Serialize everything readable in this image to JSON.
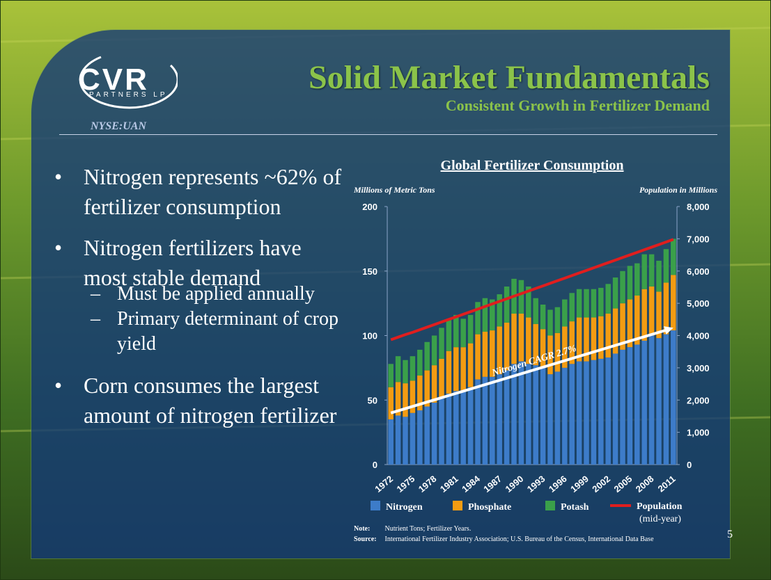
{
  "slide": {
    "title": "Solid Market Fundamentals",
    "subtitle": "Consistent Growth in Fertilizer Demand",
    "logo_main": "CVR",
    "logo_sub": "PARTNERS LP",
    "ticker": "NYSE:UAN",
    "page_number": "5"
  },
  "bullets": [
    {
      "text": "Nitrogen represents ~62% of fertilizer consumption"
    },
    {
      "text": "Nitrogen fertilizers have most stable demand",
      "sub": [
        "Must be applied annually",
        "Primary determinant of crop yield"
      ]
    },
    {
      "text": "Corn consumes the largest amount of nitrogen fertilizer"
    }
  ],
  "notes": {
    "note_label": "Note:",
    "note_text": "Nutrient Tons; Fertilizer Years.",
    "source_label": "Source:",
    "source_text": "International Fertilizer Industry Association; U.S. Bureau of the Census, International Data Base"
  },
  "colors": {
    "nitrogen": "#3d7cc9",
    "phosphate": "#f39c12",
    "potash": "#3aa04a",
    "population": "#e01e1e",
    "title_green": "#8bc34a"
  },
  "chart_data": {
    "type": "bar",
    "stacked": true,
    "title": "Global Fertilizer Consumption",
    "ylabel": "Millions of Metric Tons",
    "y2label": "Population in Millions",
    "ylim": [
      0,
      200
    ],
    "y2lim": [
      0,
      8000
    ],
    "yticks": [
      "0",
      "50",
      "100",
      "150",
      "200"
    ],
    "y2ticks": [
      "0",
      "1,000",
      "2,000",
      "3,000",
      "4,000",
      "5,000",
      "6,000",
      "7,000",
      "8,000"
    ],
    "xticks": [
      "1972",
      "1975",
      "1978",
      "1981",
      "1984",
      "1987",
      "1990",
      "1993",
      "1996",
      "1999",
      "2002",
      "2005",
      "2008",
      "2011"
    ],
    "categories": [
      "1972",
      "1973",
      "1974",
      "1975",
      "1976",
      "1977",
      "1978",
      "1979",
      "1980",
      "1981",
      "1982",
      "1983",
      "1984",
      "1985",
      "1986",
      "1987",
      "1988",
      "1989",
      "1990",
      "1991",
      "1992",
      "1993",
      "1994",
      "1995",
      "1996",
      "1997",
      "1998",
      "1999",
      "2000",
      "2001",
      "2002",
      "2003",
      "2004",
      "2005",
      "2006",
      "2007",
      "2008",
      "2009",
      "2010",
      "2011"
    ],
    "series": [
      {
        "name": "Nitrogen",
        "values": [
          35,
          38,
          37,
          40,
          42,
          45,
          48,
          52,
          55,
          57,
          57,
          60,
          66,
          68,
          68,
          70,
          73,
          78,
          80,
          78,
          77,
          76,
          70,
          72,
          75,
          78,
          80,
          80,
          81,
          82,
          83,
          86,
          89,
          91,
          93,
          96,
          100,
          98,
          101,
          104
        ]
      },
      {
        "name": "Phosphate",
        "values": [
          25,
          26,
          26,
          25,
          27,
          28,
          29,
          30,
          33,
          34,
          34,
          34,
          35,
          35,
          36,
          37,
          37,
          39,
          37,
          36,
          32,
          29,
          30,
          30,
          32,
          33,
          34,
          34,
          33,
          33,
          34,
          35,
          36,
          37,
          38,
          40,
          38,
          36,
          40,
          43
        ]
      },
      {
        "name": "Potash",
        "values": [
          18,
          20,
          18,
          19,
          20,
          22,
          23,
          24,
          24,
          25,
          22,
          22,
          25,
          26,
          24,
          25,
          28,
          27,
          26,
          24,
          20,
          19,
          20,
          20,
          21,
          22,
          22,
          22,
          22,
          22,
          23,
          24,
          25,
          26,
          25,
          27,
          25,
          24,
          26,
          28
        ]
      },
      {
        "name": "Population (mid-year)",
        "axis": "right",
        "type": "line",
        "values": [
          3870,
          3950,
          4030,
          4100,
          4180,
          4260,
          4340,
          4420,
          4500,
          4580,
          4660,
          4740,
          4820,
          4900,
          4980,
          5060,
          5140,
          5220,
          5300,
          5380,
          5460,
          5540,
          5620,
          5700,
          5780,
          5860,
          5940,
          6020,
          6100,
          6180,
          6260,
          6340,
          6420,
          6500,
          6580,
          6660,
          6740,
          6820,
          6900,
          6980
        ]
      }
    ],
    "annotations": [
      {
        "text": "Nitrogen CAGR 2.7%",
        "trend_from": [
          1972,
          40
        ],
        "trend_to": [
          2011,
          106
        ]
      }
    ],
    "legend": {
      "placement": "bottom",
      "items": [
        {
          "label": "Nitrogen",
          "color": "#3d7cc9"
        },
        {
          "label": "Phosphate",
          "color": "#f39c12"
        },
        {
          "label": "Potash",
          "color": "#3aa04a"
        },
        {
          "label": "Population",
          "label2": "(mid-year)",
          "color": "#e01e1e"
        }
      ]
    }
  }
}
